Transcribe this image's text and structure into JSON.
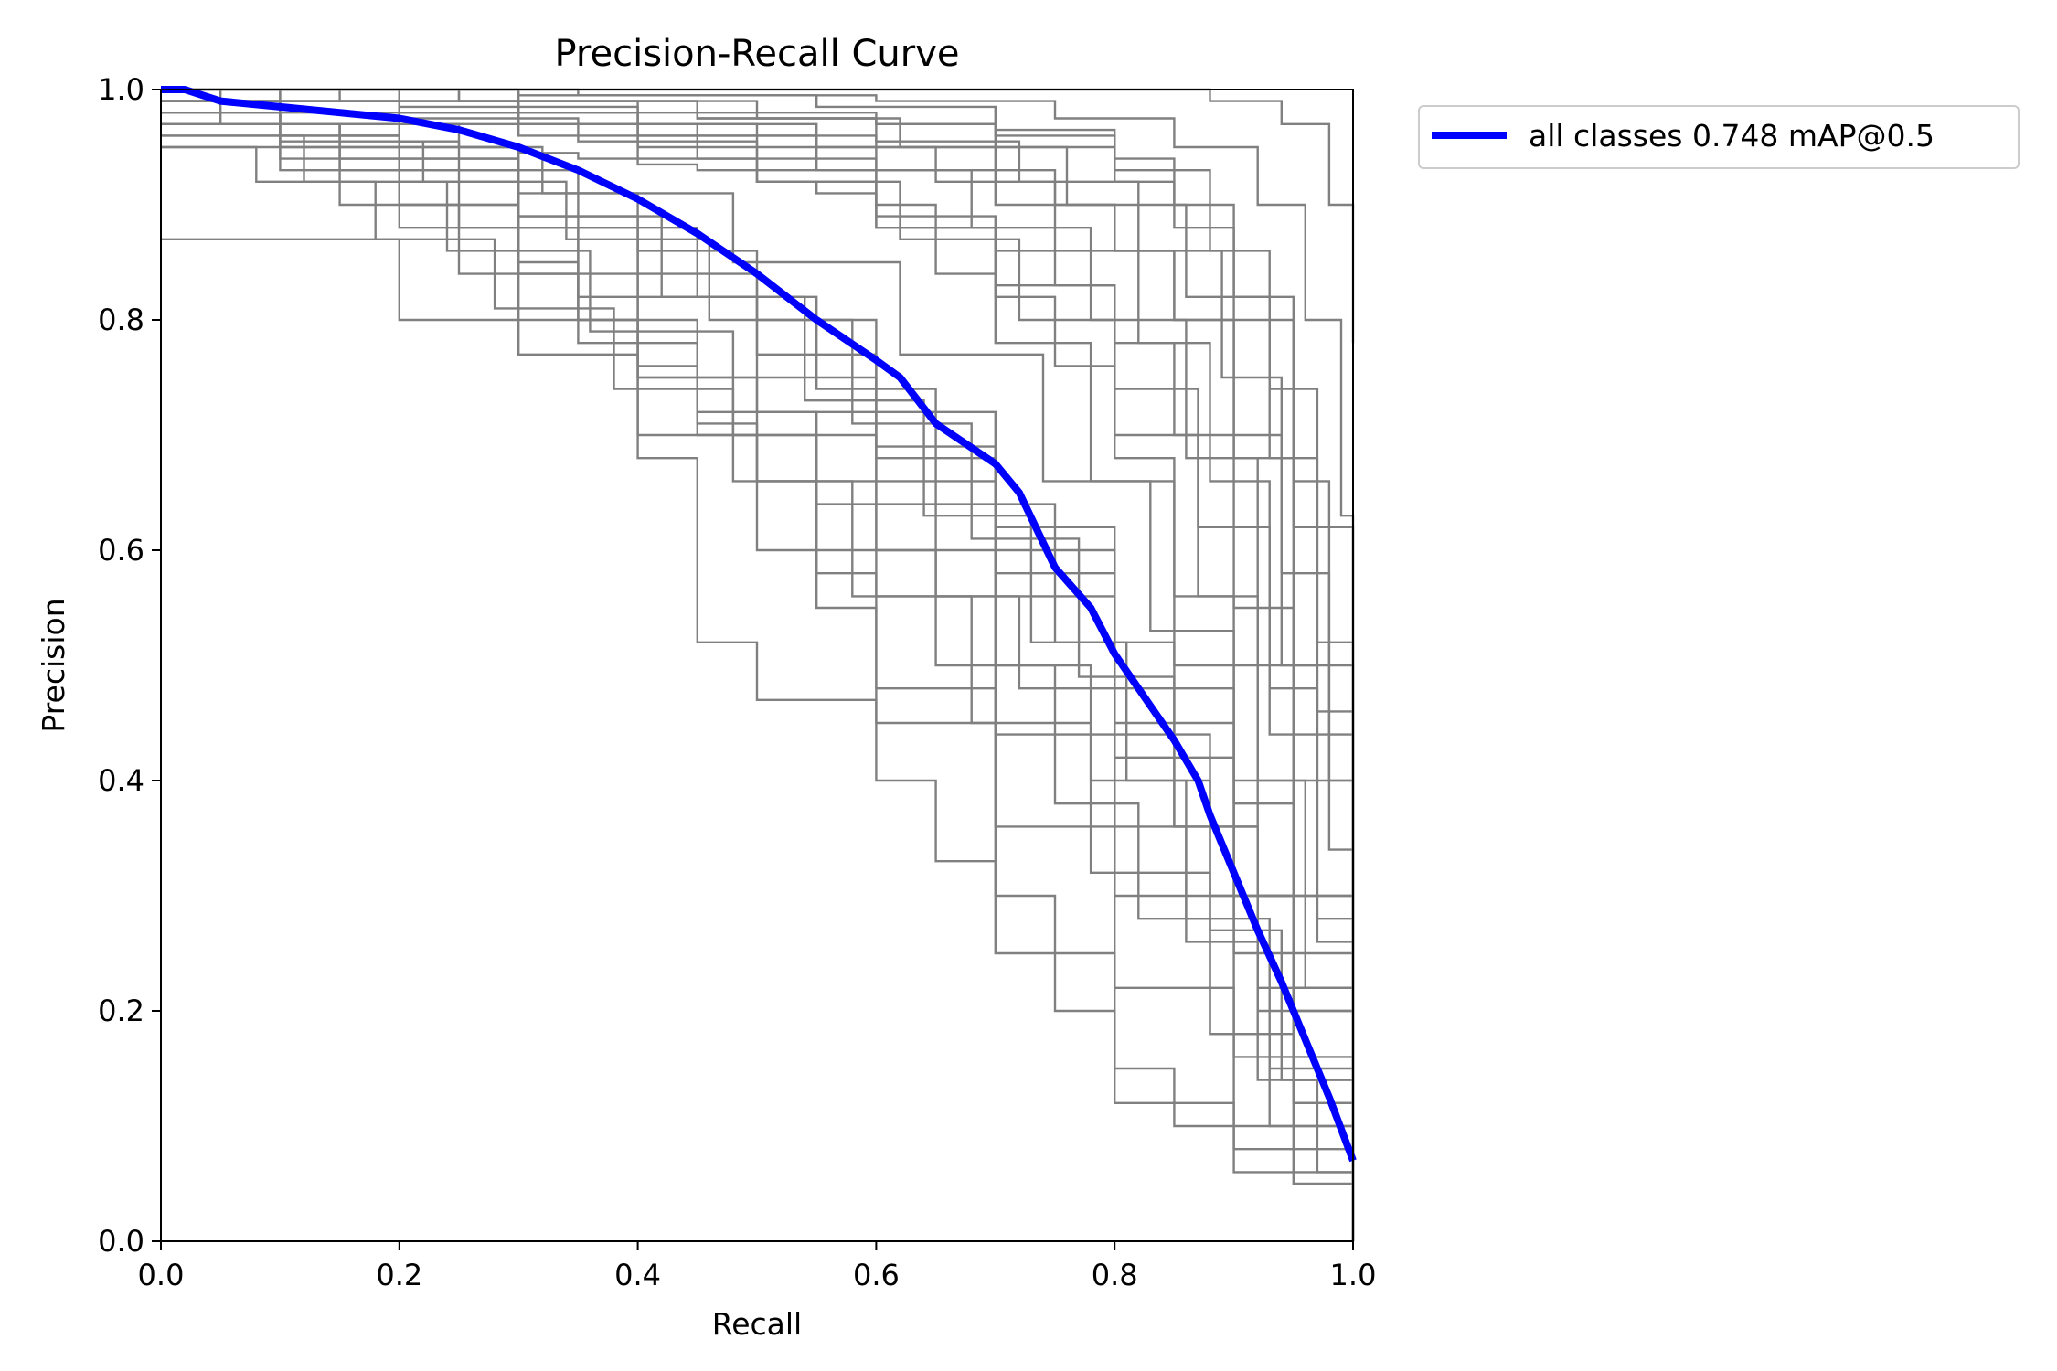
{
  "chart_data": {
    "type": "line",
    "title": "Precision-Recall Curve",
    "xlabel": "Recall",
    "ylabel": "Precision",
    "xlim": [
      0,
      1
    ],
    "ylim": [
      0,
      1
    ],
    "xticks": [
      "0.0",
      "0.2",
      "0.4",
      "0.6",
      "0.8",
      "1.0"
    ],
    "yticks": [
      "0.0",
      "0.2",
      "0.4",
      "0.6",
      "0.8",
      "1.0"
    ],
    "grid": false,
    "legend": {
      "placement": "outside-top-right",
      "entries": [
        "all classes 0.748 mAP@0.5"
      ]
    },
    "colors": {
      "all_classes": "#0000ff",
      "per_class": "#808080"
    },
    "series": [
      {
        "name": "all classes 0.748 mAP@0.5",
        "color": "#0000ff",
        "x": [
          0.0,
          0.02,
          0.05,
          0.1,
          0.15,
          0.2,
          0.25,
          0.3,
          0.35,
          0.4,
          0.45,
          0.5,
          0.55,
          0.6,
          0.62,
          0.65,
          0.7,
          0.72,
          0.75,
          0.78,
          0.8,
          0.83,
          0.85,
          0.87,
          0.88,
          0.9,
          0.92,
          0.94,
          0.96,
          0.98,
          1.0
        ],
        "y": [
          1.0,
          1.0,
          0.99,
          0.985,
          0.98,
          0.975,
          0.965,
          0.95,
          0.93,
          0.905,
          0.875,
          0.84,
          0.8,
          0.765,
          0.75,
          0.71,
          0.675,
          0.65,
          0.585,
          0.55,
          0.51,
          0.465,
          0.435,
          0.4,
          0.37,
          0.32,
          0.27,
          0.225,
          0.175,
          0.125,
          0.07
        ]
      }
    ],
    "class_curves": [
      {
        "x": [
          0.0,
          0.05,
          0.1,
          0.15,
          0.2,
          0.25,
          0.3,
          0.35,
          0.4,
          0.45,
          0.5,
          0.55,
          0.6,
          0.65,
          0.7,
          0.75,
          0.8,
          0.85,
          0.9,
          0.95,
          1.0
        ],
        "y": [
          1.0,
          0.98,
          0.97,
          0.96,
          0.955,
          0.95,
          0.945,
          0.94,
          0.935,
          0.93,
          0.92,
          0.91,
          0.9,
          0.88,
          0.86,
          0.83,
          0.78,
          0.7,
          0.55,
          0.25,
          0.0
        ]
      },
      {
        "x": [
          0.0,
          0.1,
          0.2,
          0.3,
          0.4,
          0.5,
          0.6,
          0.7,
          0.8,
          0.9,
          0.95,
          1.0
        ],
        "y": [
          0.87,
          0.87,
          0.8,
          0.77,
          0.75,
          0.72,
          0.68,
          0.6,
          0.45,
          0.3,
          0.12,
          0.0
        ]
      },
      {
        "x": [
          0.0,
          0.1,
          0.2,
          0.3,
          0.35,
          0.4,
          0.5,
          0.55,
          0.6,
          0.7,
          0.75,
          0.8,
          0.9,
          0.95,
          1.0
        ],
        "y": [
          0.98,
          0.97,
          0.94,
          0.88,
          0.82,
          0.75,
          0.66,
          0.58,
          0.45,
          0.3,
          0.2,
          0.12,
          0.08,
          0.05,
          0.0
        ]
      },
      {
        "x": [
          0.0,
          0.1,
          0.2,
          0.3,
          0.35,
          0.4,
          0.45,
          0.5,
          0.6,
          0.65,
          0.7,
          0.8,
          0.85,
          0.9,
          1.0
        ],
        "y": [
          0.99,
          0.96,
          0.9,
          0.85,
          0.8,
          0.68,
          0.52,
          0.47,
          0.4,
          0.33,
          0.25,
          0.15,
          0.1,
          0.06,
          0.0
        ]
      },
      {
        "x": [
          0.0,
          0.1,
          0.2,
          0.3,
          0.4,
          0.5,
          0.6,
          0.7,
          0.8,
          0.85,
          0.9,
          0.95,
          1.0
        ],
        "y": [
          1.0,
          0.99,
          0.98,
          0.97,
          0.96,
          0.95,
          0.93,
          0.9,
          0.86,
          0.8,
          0.68,
          0.4,
          0.0
        ]
      },
      {
        "x": [
          0.0,
          0.1,
          0.2,
          0.3,
          0.4,
          0.5,
          0.6,
          0.7,
          0.75,
          0.8,
          0.85,
          0.9,
          0.95,
          1.0
        ],
        "y": [
          0.99,
          0.98,
          0.97,
          0.96,
          0.94,
          0.92,
          0.88,
          0.82,
          0.76,
          0.68,
          0.56,
          0.4,
          0.2,
          0.0
        ]
      },
      {
        "x": [
          0.0,
          0.1,
          0.2,
          0.3,
          0.4,
          0.5,
          0.6,
          0.7,
          0.8,
          0.9,
          0.95,
          1.0
        ],
        "y": [
          0.97,
          0.95,
          0.92,
          0.88,
          0.82,
          0.75,
          0.66,
          0.56,
          0.42,
          0.25,
          0.12,
          0.0
        ]
      },
      {
        "x": [
          0.0,
          0.05,
          0.15,
          0.25,
          0.35,
          0.45,
          0.55,
          0.65,
          0.75,
          0.82,
          0.88,
          0.93,
          1.0
        ],
        "y": [
          0.98,
          0.97,
          0.93,
          0.88,
          0.8,
          0.7,
          0.6,
          0.5,
          0.38,
          0.28,
          0.18,
          0.1,
          0.0
        ]
      },
      {
        "x": [
          0.0,
          0.1,
          0.2,
          0.3,
          0.4,
          0.5,
          0.6,
          0.65,
          0.7,
          0.78,
          0.85,
          0.92,
          1.0
        ],
        "y": [
          1.0,
          0.99,
          0.98,
          0.97,
          0.95,
          0.93,
          0.88,
          0.84,
          0.78,
          0.66,
          0.5,
          0.3,
          0.0
        ]
      },
      {
        "x": [
          0.0,
          0.1,
          0.2,
          0.3,
          0.4,
          0.5,
          0.55,
          0.6,
          0.7,
          0.8,
          0.9,
          1.0
        ],
        "y": [
          0.96,
          0.93,
          0.88,
          0.8,
          0.7,
          0.6,
          0.55,
          0.48,
          0.36,
          0.22,
          0.1,
          0.0
        ]
      },
      {
        "x": [
          0.0,
          0.2,
          0.3,
          0.4,
          0.5,
          0.6,
          0.7,
          0.75,
          0.8,
          0.85,
          0.9,
          0.94,
          1.0
        ],
        "y": [
          1.0,
          0.99,
          0.98,
          0.97,
          0.96,
          0.95,
          0.93,
          0.9,
          0.86,
          0.8,
          0.7,
          0.5,
          0.0
        ]
      },
      {
        "x": [
          0.0,
          0.15,
          0.25,
          0.35,
          0.45,
          0.55,
          0.65,
          0.72,
          0.8,
          0.86,
          0.92,
          0.97,
          1.0
        ],
        "y": [
          0.95,
          0.9,
          0.84,
          0.78,
          0.72,
          0.64,
          0.56,
          0.48,
          0.36,
          0.26,
          0.14,
          0.06,
          0.0
        ]
      },
      {
        "x": [
          0.0,
          0.2,
          0.4,
          0.5,
          0.6,
          0.7,
          0.8,
          0.85,
          0.9,
          0.95,
          0.98,
          1.0
        ],
        "y": [
          1.0,
          0.99,
          0.98,
          0.975,
          0.97,
          0.96,
          0.94,
          0.9,
          0.82,
          0.66,
          0.4,
          0.0
        ]
      },
      {
        "x": [
          0.0,
          0.1,
          0.2,
          0.3,
          0.4,
          0.5,
          0.6,
          0.7,
          0.8,
          0.9,
          1.0
        ],
        "y": [
          0.99,
          0.97,
          0.95,
          0.91,
          0.86,
          0.8,
          0.72,
          0.62,
          0.48,
          0.3,
          0.0
        ]
      },
      {
        "x": [
          0.0,
          0.1,
          0.2,
          0.3,
          0.4,
          0.5,
          0.6,
          0.7,
          0.8,
          0.88,
          0.95,
          1.0
        ],
        "y": [
          0.98,
          0.96,
          0.93,
          0.89,
          0.84,
          0.77,
          0.69,
          0.58,
          0.44,
          0.3,
          0.14,
          0.0
        ]
      },
      {
        "x": [
          0.0,
          0.3,
          0.5,
          0.6,
          0.7,
          0.8,
          0.85,
          0.9,
          0.95,
          1.0
        ],
        "y": [
          1.0,
          0.99,
          0.98,
          0.97,
          0.95,
          0.92,
          0.88,
          0.8,
          0.62,
          0.0
        ]
      },
      {
        "x": [
          0.0,
          0.1,
          0.2,
          0.3,
          0.4,
          0.45,
          0.5,
          0.6,
          0.7,
          0.8,
          0.9,
          1.0
        ],
        "y": [
          0.97,
          0.94,
          0.9,
          0.84,
          0.76,
          0.71,
          0.66,
          0.56,
          0.44,
          0.3,
          0.16,
          0.0
        ]
      },
      {
        "x": [
          0.0,
          0.2,
          0.4,
          0.55,
          0.65,
          0.75,
          0.82,
          0.88,
          0.93,
          0.97,
          1.0
        ],
        "y": [
          1.0,
          0.985,
          0.97,
          0.95,
          0.92,
          0.86,
          0.78,
          0.66,
          0.48,
          0.26,
          0.0
        ]
      },
      {
        "x": [
          0.0,
          0.1,
          0.25,
          0.35,
          0.45,
          0.55,
          0.65,
          0.75,
          0.85,
          0.92,
          1.0
        ],
        "y": [
          0.99,
          0.97,
          0.93,
          0.88,
          0.82,
          0.74,
          0.64,
          0.52,
          0.36,
          0.2,
          0.0
        ]
      },
      {
        "x": [
          0.0,
          0.15,
          0.3,
          0.45,
          0.6,
          0.7,
          0.8,
          0.87,
          0.93,
          1.0
        ],
        "y": [
          1.0,
          0.99,
          0.97,
          0.94,
          0.89,
          0.83,
          0.74,
          0.62,
          0.44,
          0.0
        ]
      },
      {
        "x": [
          0.0,
          0.12,
          0.24,
          0.36,
          0.48,
          0.6,
          0.7,
          0.78,
          0.86,
          0.93,
          1.0
        ],
        "y": [
          0.96,
          0.92,
          0.86,
          0.79,
          0.7,
          0.6,
          0.5,
          0.4,
          0.28,
          0.15,
          0.0
        ]
      },
      {
        "x": [
          0.0,
          0.25,
          0.45,
          0.6,
          0.72,
          0.82,
          0.89,
          0.94,
          0.98,
          1.0
        ],
        "y": [
          1.0,
          0.99,
          0.975,
          0.955,
          0.92,
          0.86,
          0.75,
          0.58,
          0.34,
          0.0
        ]
      },
      {
        "x": [
          0.0,
          0.08,
          0.18,
          0.28,
          0.38,
          0.48,
          0.58,
          0.68,
          0.78,
          0.88,
          0.95,
          1.0
        ],
        "y": [
          0.95,
          0.92,
          0.87,
          0.81,
          0.74,
          0.66,
          0.56,
          0.45,
          0.32,
          0.18,
          0.08,
          0.0
        ]
      },
      {
        "x": [
          0.0,
          0.2,
          0.35,
          0.5,
          0.62,
          0.72,
          0.8,
          0.87,
          0.92,
          0.96,
          1.0
        ],
        "y": [
          0.99,
          0.975,
          0.955,
          0.92,
          0.87,
          0.8,
          0.7,
          0.56,
          0.4,
          0.22,
          0.0
        ]
      },
      {
        "x": [
          0.0,
          0.3,
          0.55,
          0.7,
          0.8,
          0.88,
          0.93,
          0.97,
          1.0
        ],
        "y": [
          1.0,
          0.995,
          0.985,
          0.965,
          0.93,
          0.86,
          0.74,
          0.52,
          0.0
        ]
      },
      {
        "x": [
          0.0,
          0.15,
          0.3,
          0.42,
          0.54,
          0.64,
          0.73,
          0.81,
          0.88,
          0.94,
          1.0
        ],
        "y": [
          0.97,
          0.94,
          0.89,
          0.82,
          0.73,
          0.63,
          0.52,
          0.4,
          0.27,
          0.14,
          0.0
        ]
      },
      {
        "x": [
          0.0,
          0.35,
          0.6,
          0.75,
          0.85,
          0.92,
          0.96,
          0.99,
          1.0
        ],
        "y": [
          1.0,
          0.995,
          0.99,
          0.975,
          0.95,
          0.9,
          0.8,
          0.63,
          0.0
        ]
      },
      {
        "x": [
          0.0,
          0.1,
          0.22,
          0.34,
          0.46,
          0.58,
          0.68,
          0.77,
          0.85,
          0.92,
          1.0
        ],
        "y": [
          0.98,
          0.955,
          0.92,
          0.87,
          0.8,
          0.71,
          0.61,
          0.49,
          0.36,
          0.22,
          0.0
        ]
      },
      {
        "x": [
          0.0,
          0.2,
          0.4,
          0.55,
          0.68,
          0.78,
          0.86,
          0.92,
          0.97,
          1.0
        ],
        "y": [
          0.99,
          0.98,
          0.96,
          0.93,
          0.88,
          0.8,
          0.68,
          0.5,
          0.28,
          0.0
        ]
      },
      {
        "x": [
          0.0,
          0.5,
          0.75,
          0.88,
          0.94,
          0.98,
          1.0
        ],
        "y": [
          1.0,
          1.0,
          1.0,
          0.99,
          0.97,
          0.9,
          0.78
        ]
      },
      {
        "x": [
          0.0,
          0.15,
          0.32,
          0.48,
          0.62,
          0.74,
          0.83,
          0.9,
          0.95,
          1.0
        ],
        "y": [
          0.97,
          0.95,
          0.91,
          0.85,
          0.77,
          0.66,
          0.53,
          0.38,
          0.22,
          0.0
        ]
      },
      {
        "x": [
          0.0,
          0.25,
          0.45,
          0.62,
          0.76,
          0.86,
          0.93,
          0.97,
          1.0
        ],
        "y": [
          1.0,
          0.99,
          0.975,
          0.95,
          0.9,
          0.82,
          0.68,
          0.46,
          0.0
        ]
      }
    ]
  }
}
